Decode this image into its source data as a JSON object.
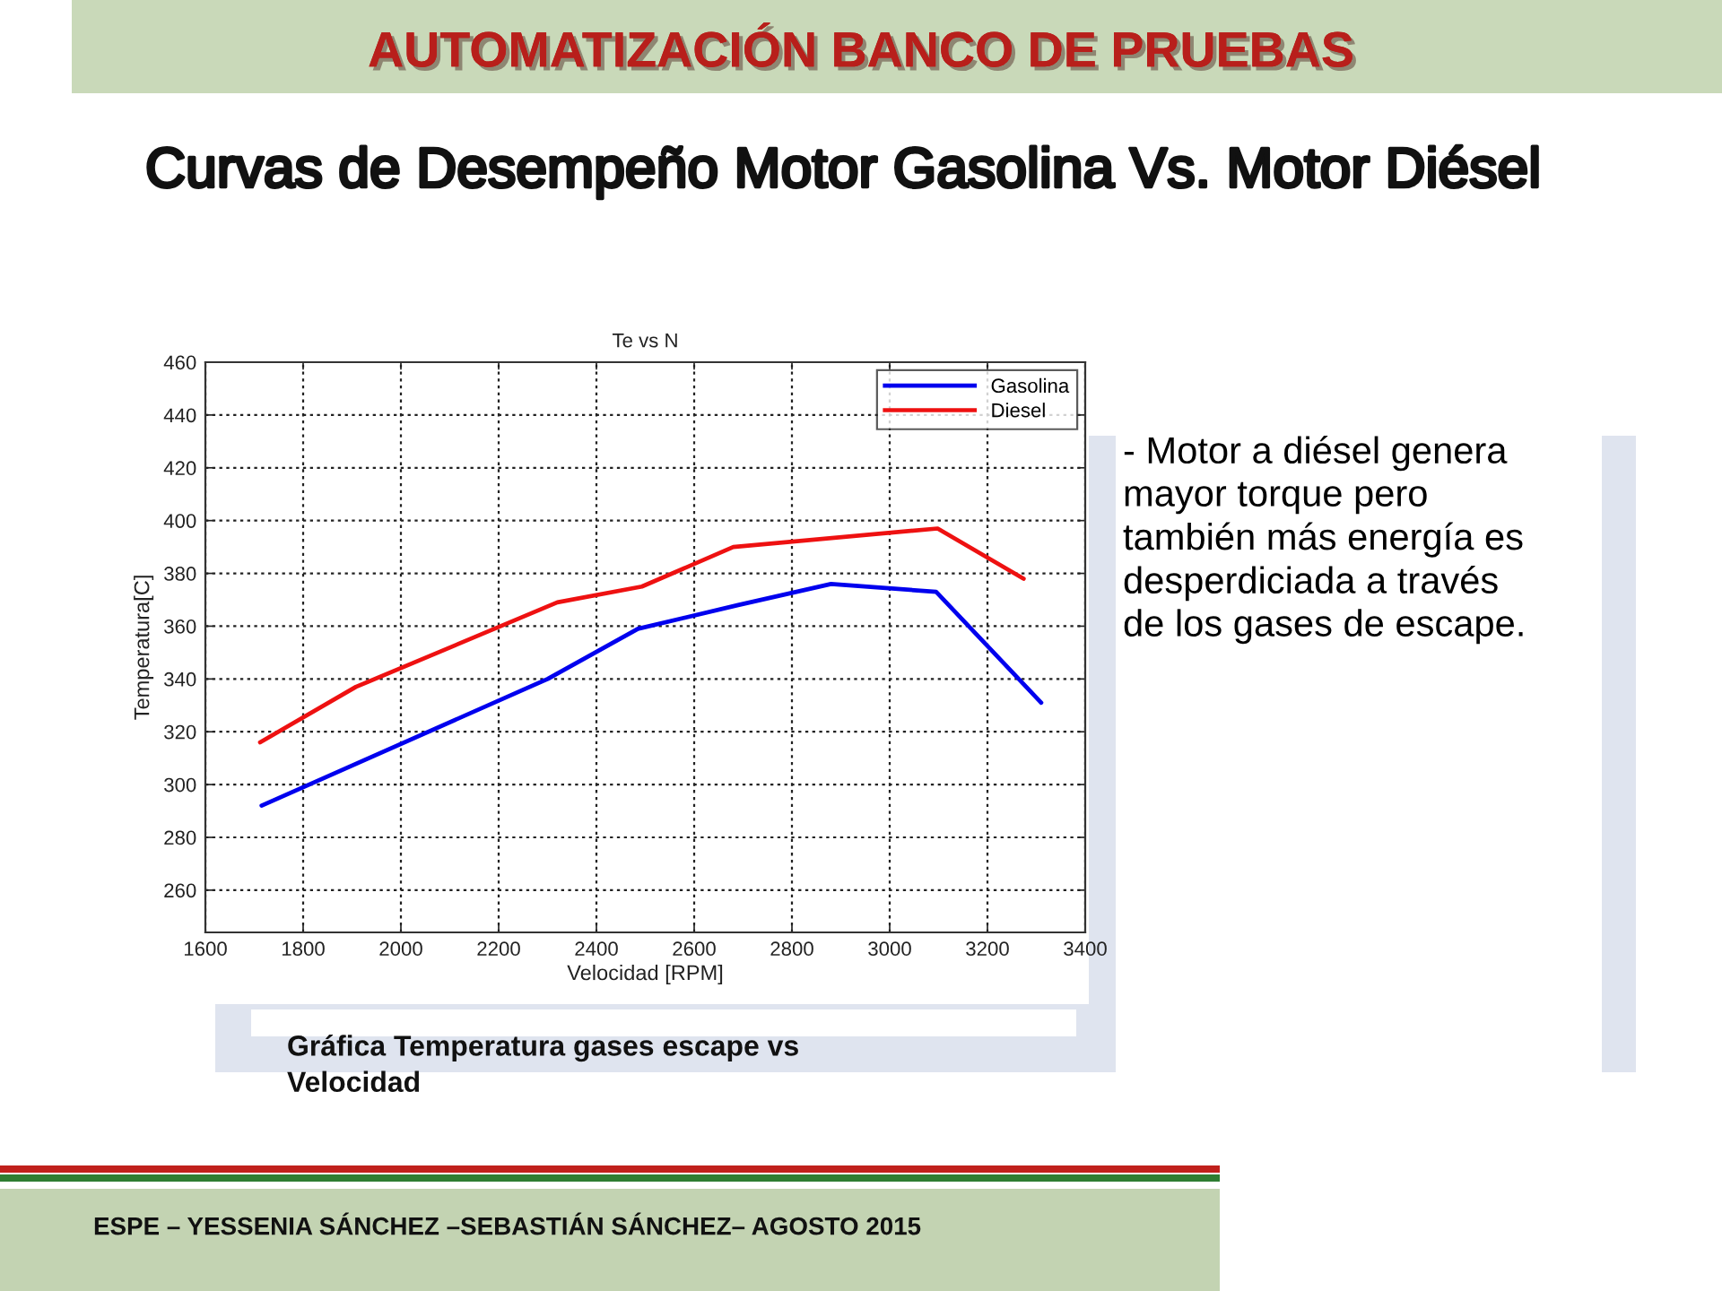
{
  "chart_data": {
    "type": "line",
    "title": "Te vs N",
    "xlabel": "Velocidad [RPM]",
    "ylabel": "Temperatura[C]",
    "series": [
      {
        "name": "Gasolina",
        "color": "#0000ee",
        "x": [
          1715,
          2300,
          2485,
          2690,
          2880,
          3095,
          3310
        ],
        "values": [
          292,
          340,
          359,
          368,
          376,
          373,
          331
        ]
      },
      {
        "name": "Diesel",
        "color": "#ee1111",
        "x": [
          1712,
          1908,
          2320,
          2493,
          2680,
          3098,
          3274
        ],
        "values": [
          316,
          337,
          369,
          375,
          390,
          397,
          378
        ]
      }
    ],
    "xlim": [
      1600,
      3400
    ],
    "xticks": [
      1600,
      1800,
      2000,
      2200,
      2400,
      2600,
      2800,
      3000,
      3200,
      3400
    ],
    "ylim": [
      244,
      460
    ],
    "yticks": [
      260,
      280,
      300,
      320,
      340,
      360,
      380,
      400,
      420,
      440,
      460
    ],
    "grid": true,
    "legend": "top right",
    "annotations": [
      "AUTOMATIZACIÓN BANCO DE PRUEBAS",
      "Curvas de Desempeño Motor Gasolina Vs. Motor Diésel",
      "- Motor a diésel genera\nmayor torque pero\ntambién más energía es\ndesperdiciada a través\nde los gases de escape.",
      "Gráfica Temperatura gases escape vs\nVelocidad",
      "ESPE – YESSENIA SÁNCHEZ –SEBASTIÁN SÁNCHEZ– AGOSTO 2015"
    ]
  }
}
